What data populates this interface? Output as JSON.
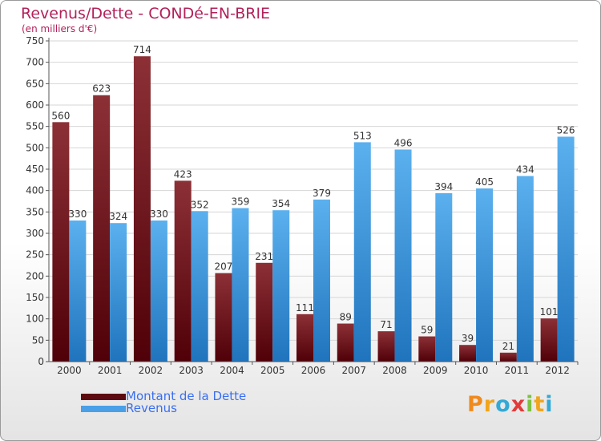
{
  "title": "Revenus/Dette - CONDé-EN-BRIE",
  "subtitle": "(en milliers d'€)",
  "legend": [
    {
      "label": "Montant de la Dette",
      "color": "#5c0a10"
    },
    {
      "label": "Revenus",
      "color": "#4aa0e6"
    }
  ],
  "logo_text": "Proxiti",
  "colors": {
    "title": "#b3205a",
    "debt_top": "#8c3036",
    "debt_bottom": "#500008",
    "revenue_top": "#5bb0ee",
    "revenue_bottom": "#1f74bd",
    "grid": "#d6d6d6"
  },
  "chart_data": {
    "type": "bar",
    "categories": [
      "2000",
      "2001",
      "2002",
      "2003",
      "2004",
      "2005",
      "2006",
      "2007",
      "2008",
      "2009",
      "2010",
      "2011",
      "2012"
    ],
    "series": [
      {
        "name": "Montant de la Dette",
        "values": [
          560,
          623,
          714,
          423,
          207,
          231,
          111,
          89,
          71,
          59,
          39,
          21,
          101
        ]
      },
      {
        "name": "Revenus",
        "values": [
          330,
          324,
          330,
          352,
          359,
          354,
          379,
          513,
          496,
          394,
          405,
          434,
          526
        ]
      }
    ],
    "ylim": [
      0,
      750
    ],
    "yticks": [
      0,
      50,
      100,
      150,
      200,
      250,
      300,
      350,
      400,
      450,
      500,
      550,
      600,
      650,
      700,
      750
    ],
    "grid": true,
    "legend_position": "bottom-left"
  }
}
